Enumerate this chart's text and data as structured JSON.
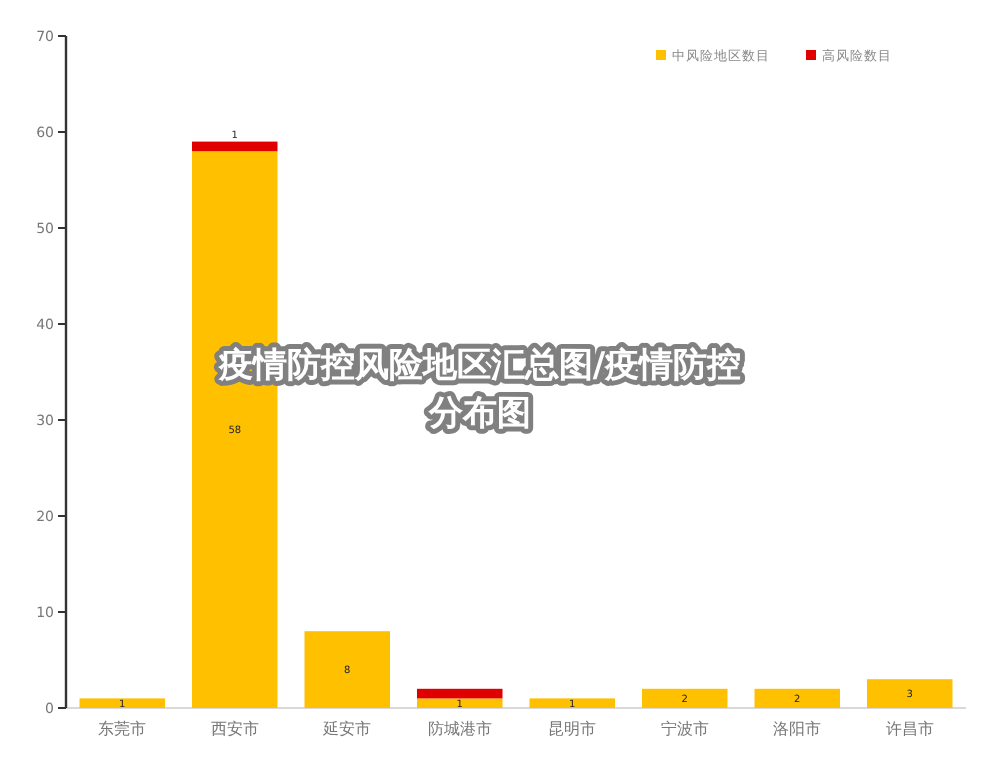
{
  "chart_data": {
    "type": "bar",
    "stacked": true,
    "title": "疫情防控风险地区汇总图/疫情防控分布图",
    "categories": [
      "东莞市",
      "西安市",
      "延安市",
      "防城港市",
      "昆明市",
      "宁波市",
      "洛阳市",
      "许昌市"
    ],
    "series": [
      {
        "name": "中风险地区数目",
        "color": "#ffc000",
        "values": [
          1,
          58,
          8,
          1,
          1,
          2,
          2,
          3
        ],
        "value_labels": [
          "1",
          "58",
          "8",
          "1",
          "1",
          "2",
          "2",
          "3"
        ]
      },
      {
        "name": "高风险数目",
        "color": "#e00000",
        "values": [
          null,
          1,
          null,
          1,
          null,
          null,
          null,
          null
        ],
        "value_labels": [
          null,
          "1",
          null,
          null,
          null,
          null,
          null,
          null
        ]
      }
    ],
    "ylim": [
      0,
      70
    ],
    "yticks": [
      0,
      10,
      20,
      30,
      40,
      50,
      60,
      70
    ],
    "legend": "top right",
    "grid": false
  }
}
